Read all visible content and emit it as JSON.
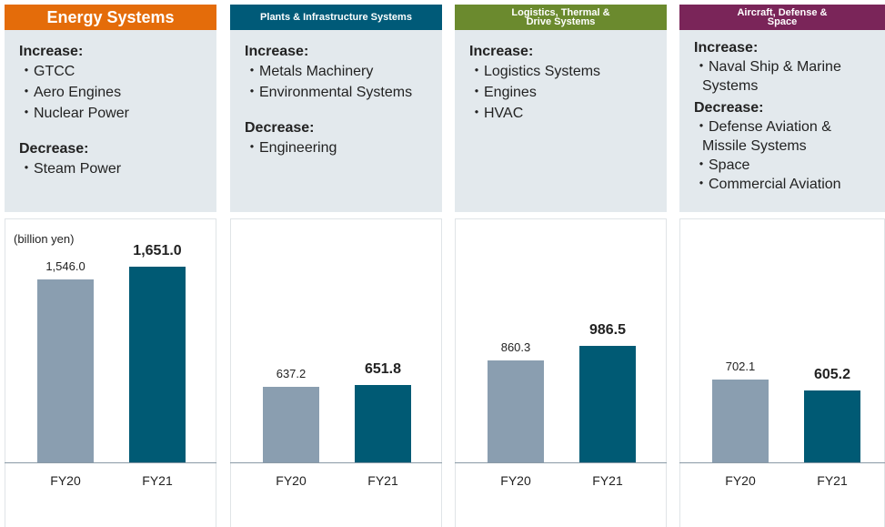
{
  "chart_data": [
    {
      "type": "bar",
      "title": "Energy Systems",
      "header_color": "#e46c0a",
      "unit": "(billion yen)",
      "notes": [
        {
          "heading": "Increase:",
          "items": [
            "・GTCC",
            "・Aero Engines",
            "・Nuclear Power"
          ]
        },
        {
          "heading": "Decrease:",
          "items": [
            "・Steam Power"
          ]
        }
      ],
      "categories": [
        "FY20",
        "FY21"
      ],
      "values": [
        1546.0,
        1651.0
      ],
      "value_labels": [
        "1,546.0",
        "1,651.0"
      ],
      "colors": [
        "#8a9eb0",
        "#005a74"
      ]
    },
    {
      "type": "bar",
      "title": "Plants & Infrastructure Systems",
      "header_color": "#005a78",
      "notes": [
        {
          "heading": "Increase:",
          "items": [
            "・Metals Machinery",
            "・Environmental Systems"
          ]
        },
        {
          "heading": "Decrease:",
          "items": [
            "・Engineering"
          ]
        }
      ],
      "categories": [
        "FY20",
        "FY21"
      ],
      "values": [
        637.2,
        651.8
      ],
      "colors": [
        "#8a9eb0",
        "#005a74"
      ]
    },
    {
      "type": "bar",
      "title": "Logistics, Thermal & Drive Systems",
      "header_color": "#6b8a2e",
      "notes": [
        {
          "heading": "Increase:",
          "items": [
            "・Logistics Systems",
            "・Engines",
            "・HVAC"
          ]
        }
      ],
      "categories": [
        "FY20",
        "FY21"
      ],
      "values": [
        860.3,
        986.5
      ],
      "colors": [
        "#8a9eb0",
        "#005a74"
      ]
    },
    {
      "type": "bar",
      "title": "Aircraft, Defense & Space",
      "header_color": "#7a2559",
      "notes": [
        {
          "heading": "Increase:",
          "items": [
            "・Naval Ship & Marine Systems"
          ]
        },
        {
          "heading": "Decrease:",
          "items": [
            "・Defense Aviation & Missile Systems",
            "・Space",
            "・Commercial Aviation"
          ]
        }
      ],
      "categories": [
        "FY20",
        "FY21"
      ],
      "values": [
        702.1,
        605.2
      ],
      "colors": [
        "#8a9eb0",
        "#005a74"
      ]
    }
  ]
}
